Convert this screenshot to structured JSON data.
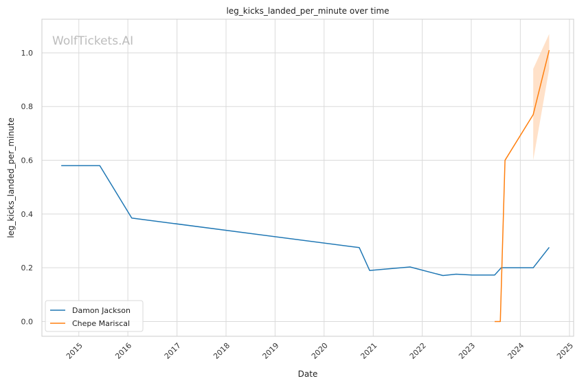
{
  "chart_data": {
    "type": "line",
    "title": "leg_kicks_landed_per_minute over time",
    "xlabel": "Date",
    "ylabel": "leg_kicks_landed_per_minute",
    "watermark": "WolfTickets.AI",
    "x_ticks": [
      "2015",
      "2016",
      "2017",
      "2018",
      "2019",
      "2020",
      "2021",
      "2022",
      "2023",
      "2024",
      "2025"
    ],
    "y_ticks": [
      "0.0",
      "0.2",
      "0.4",
      "0.6",
      "0.8",
      "1.0"
    ],
    "xlim": [
      "2014-04-01",
      "2025-02-01"
    ],
    "ylim": [
      -0.055,
      1.125
    ],
    "grid": true,
    "legend_position": "lower-left",
    "series": [
      {
        "name": "Damon Jackson",
        "color": "#1f77b4",
        "points": [
          [
            "2014-08-23",
            0.58
          ],
          [
            "2015-06-06",
            0.58
          ],
          [
            "2016-01-30",
            0.385
          ],
          [
            "2020-09-19",
            0.275
          ],
          [
            "2020-12-05",
            0.19
          ],
          [
            "2021-10-02",
            0.203
          ],
          [
            "2022-06-04",
            0.171
          ],
          [
            "2022-09-10",
            0.176
          ],
          [
            "2023-01-07",
            0.173
          ],
          [
            "2023-06-24",
            0.173
          ],
          [
            "2023-08-12",
            0.2
          ],
          [
            "2024-04-06",
            0.2
          ],
          [
            "2024-08-03",
            0.276
          ]
        ]
      },
      {
        "name": "Chepe Mariscal",
        "color": "#ff7f0e",
        "points": [
          [
            "2023-06-24",
            0.0
          ],
          [
            "2023-08-05",
            0.0
          ],
          [
            "2023-09-09",
            0.6
          ],
          [
            "2024-04-06",
            0.77
          ],
          [
            "2024-08-03",
            1.01
          ]
        ],
        "band": {
          "color": "#ffdcbf",
          "lower": [
            [
              "2024-04-06",
              0.6
            ],
            [
              "2024-08-03",
              0.94
            ]
          ],
          "upper": [
            [
              "2024-04-06",
              0.94
            ],
            [
              "2024-08-03",
              1.07
            ]
          ]
        }
      }
    ]
  }
}
